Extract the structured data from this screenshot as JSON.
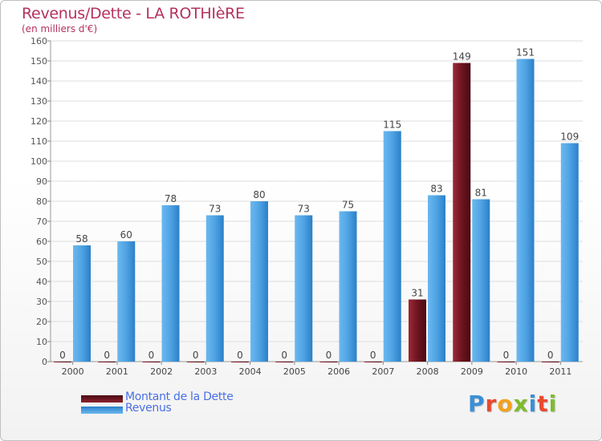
{
  "chart_data": {
    "type": "bar",
    "title": "Revenus/Dette - LA ROTHIèRE",
    "subtitle": "(en milliers d'€)",
    "categories": [
      "2000",
      "2001",
      "2002",
      "2003",
      "2004",
      "2005",
      "2006",
      "2007",
      "2008",
      "2009",
      "2010",
      "2011"
    ],
    "series": [
      {
        "name": "Montant de la Dette",
        "color": "#7a1f2a",
        "values": [
          0,
          0,
          0,
          0,
          0,
          0,
          0,
          0,
          31,
          149,
          0,
          0
        ]
      },
      {
        "name": "Revenus",
        "color": "#4fa3e3",
        "values": [
          58,
          60,
          78,
          73,
          80,
          73,
          75,
          115,
          83,
          81,
          151,
          109
        ]
      }
    ],
    "yticks": [
      0,
      10,
      20,
      30,
      40,
      50,
      60,
      70,
      80,
      90,
      100,
      110,
      120,
      130,
      140,
      150,
      160
    ],
    "ylim": [
      0,
      160
    ],
    "grid": true,
    "legend_position": "bottom-left"
  },
  "logo": {
    "letters": [
      "P",
      "r",
      "o",
      "x",
      "i",
      "t",
      "i"
    ],
    "colors": [
      "#3a8fd8",
      "#e84a2e",
      "#f2a21c",
      "#7cbd2a",
      "#3a8fd8",
      "#e84a2e",
      "#7cbd2a"
    ]
  }
}
